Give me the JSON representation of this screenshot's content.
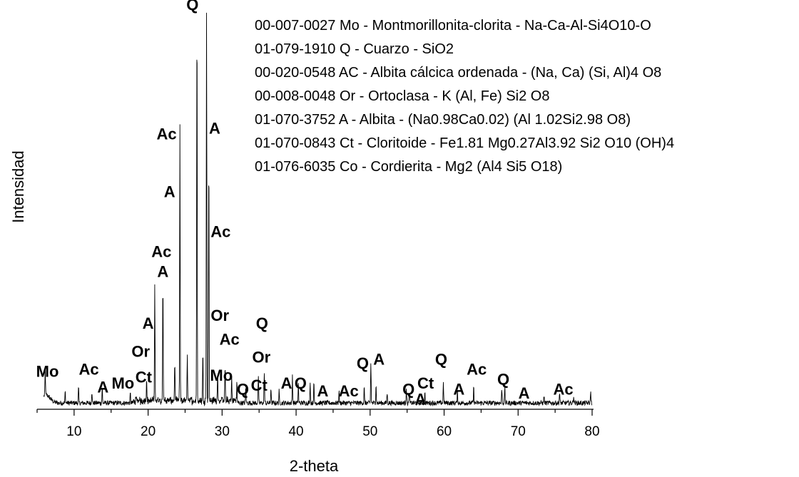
{
  "chart_data": {
    "type": "line",
    "xlabel": "2-theta",
    "ylabel": "Intensidad",
    "xlim": [
      5,
      80
    ],
    "x_ticks": [
      10,
      20,
      30,
      40,
      50,
      60,
      70,
      80
    ],
    "grid": false,
    "legend_position": "top-right",
    "legend": [
      "00-007-0027  Mo - Montmorillonita-clorita - Na-Ca-Al-Si4O10-O",
      "01-079-1910  Q   - Cuarzo - SiO2",
      "00-020-0548  AC - Albita cálcica ordenada - (Na, Ca) (Si, Al)4 O8",
      "00-008-0048  Or  - Ortoclasa - K (Al, Fe) Si2 O8",
      "01-070-3752  A   - Albita - (Na0.98Ca0.02) (Al 1.02Si2.98 O8)",
      "01-070-0843  Ct - Cloritoide - Fe1.81 Mg0.27Al3.92 Si2 O10 (OH)4",
      "01-076-6035  Co - Cordierita - Mg2 (Al4 Si5 O18)"
    ],
    "peaks": [
      {
        "x": 6.1,
        "y": 0.07
      },
      {
        "x": 8.8,
        "y": 0.03
      },
      {
        "x": 10.6,
        "y": 0.04
      },
      {
        "x": 12.4,
        "y": 0.03
      },
      {
        "x": 13.8,
        "y": 0.04
      },
      {
        "x": 17.6,
        "y": 0.025
      },
      {
        "x": 19.8,
        "y": 0.06
      },
      {
        "x": 20.9,
        "y": 0.29
      },
      {
        "x": 22.0,
        "y": 0.31
      },
      {
        "x": 23.6,
        "y": 0.1
      },
      {
        "x": 24.3,
        "y": 0.69
      },
      {
        "x": 25.3,
        "y": 0.12
      },
      {
        "x": 26.6,
        "y": 1.0
      },
      {
        "x": 27.4,
        "y": 0.12
      },
      {
        "x": 27.9,
        "y": 0.98
      },
      {
        "x": 28.2,
        "y": 0.63
      },
      {
        "x": 29.4,
        "y": 0.08
      },
      {
        "x": 30.4,
        "y": 0.09
      },
      {
        "x": 31.3,
        "y": 0.06
      },
      {
        "x": 32.0,
        "y": 0.05
      },
      {
        "x": 33.2,
        "y": 0.04
      },
      {
        "x": 34.9,
        "y": 0.07
      },
      {
        "x": 35.7,
        "y": 0.08
      },
      {
        "x": 36.6,
        "y": 0.04
      },
      {
        "x": 37.7,
        "y": 0.03
      },
      {
        "x": 39.5,
        "y": 0.07
      },
      {
        "x": 40.3,
        "y": 0.05
      },
      {
        "x": 41.9,
        "y": 0.055
      },
      {
        "x": 42.4,
        "y": 0.05
      },
      {
        "x": 45.8,
        "y": 0.03
      },
      {
        "x": 49.2,
        "y": 0.04
      },
      {
        "x": 50.1,
        "y": 0.1
      },
      {
        "x": 50.8,
        "y": 0.05
      },
      {
        "x": 52.3,
        "y": 0.025
      },
      {
        "x": 54.9,
        "y": 0.04
      },
      {
        "x": 55.3,
        "y": 0.03
      },
      {
        "x": 57.4,
        "y": 0.025
      },
      {
        "x": 59.9,
        "y": 0.055
      },
      {
        "x": 61.8,
        "y": 0.03
      },
      {
        "x": 64.0,
        "y": 0.04
      },
      {
        "x": 67.8,
        "y": 0.035
      },
      {
        "x": 68.2,
        "y": 0.04
      },
      {
        "x": 73.5,
        "y": 0.02
      },
      {
        "x": 75.6,
        "y": 0.025
      },
      {
        "x": 77.5,
        "y": 0.02
      },
      {
        "x": 79.8,
        "y": 0.03
      }
    ],
    "annotations": [
      {
        "text": "Mo",
        "x": 6.4,
        "y": 0.08
      },
      {
        "text": "Ac",
        "x": 12.0,
        "y": 0.085
      },
      {
        "text": "A",
        "x": 13.9,
        "y": 0.04
      },
      {
        "text": "Mo",
        "x": 16.6,
        "y": 0.05
      },
      {
        "text": "Ct",
        "x": 19.4,
        "y": 0.065
      },
      {
        "text": "Or",
        "x": 19.0,
        "y": 0.13
      },
      {
        "text": "A",
        "x": 20.0,
        "y": 0.2
      },
      {
        "text": "A",
        "x": 22.0,
        "y": 0.33
      },
      {
        "text": "Ac",
        "x": 21.8,
        "y": 0.38
      },
      {
        "text": "A",
        "x": 22.9,
        "y": 0.53
      },
      {
        "text": "Ac",
        "x": 22.5,
        "y": 0.675
      },
      {
        "text": "Q",
        "x": 26.0,
        "y": 1.0
      },
      {
        "text": "A",
        "x": 29.0,
        "y": 0.69
      },
      {
        "text": "Ac",
        "x": 29.8,
        "y": 0.43
      },
      {
        "text": "Or",
        "x": 29.7,
        "y": 0.22
      },
      {
        "text": "Ac",
        "x": 31.0,
        "y": 0.16
      },
      {
        "text": "Mo",
        "x": 29.9,
        "y": 0.07
      },
      {
        "text": "Q",
        "x": 32.8,
        "y": 0.035
      },
      {
        "text": "Ct",
        "x": 35.0,
        "y": 0.045
      },
      {
        "text": "Or",
        "x": 35.3,
        "y": 0.115
      },
      {
        "text": "Q",
        "x": 35.4,
        "y": 0.2
      },
      {
        "text": "A",
        "x": 38.7,
        "y": 0.05
      },
      {
        "text": "Q",
        "x": 40.6,
        "y": 0.05
      },
      {
        "text": "A",
        "x": 43.6,
        "y": 0.03
      },
      {
        "text": "Ac",
        "x": 47.1,
        "y": 0.03
      },
      {
        "text": "Q",
        "x": 49.0,
        "y": 0.1
      },
      {
        "text": "A",
        "x": 51.2,
        "y": 0.11
      },
      {
        "text": "Q",
        "x": 55.2,
        "y": 0.035
      },
      {
        "text": "A",
        "x": 56.8,
        "y": 0.01
      },
      {
        "text": "Ct",
        "x": 57.5,
        "y": 0.05
      },
      {
        "text": "Q",
        "x": 59.6,
        "y": 0.11
      },
      {
        "text": "A",
        "x": 62.0,
        "y": 0.035
      },
      {
        "text": "Ac",
        "x": 64.4,
        "y": 0.085
      },
      {
        "text": "Q",
        "x": 68.0,
        "y": 0.06
      },
      {
        "text": "A",
        "x": 70.8,
        "y": 0.025
      },
      {
        "text": "Ac",
        "x": 76.1,
        "y": 0.035
      }
    ]
  }
}
